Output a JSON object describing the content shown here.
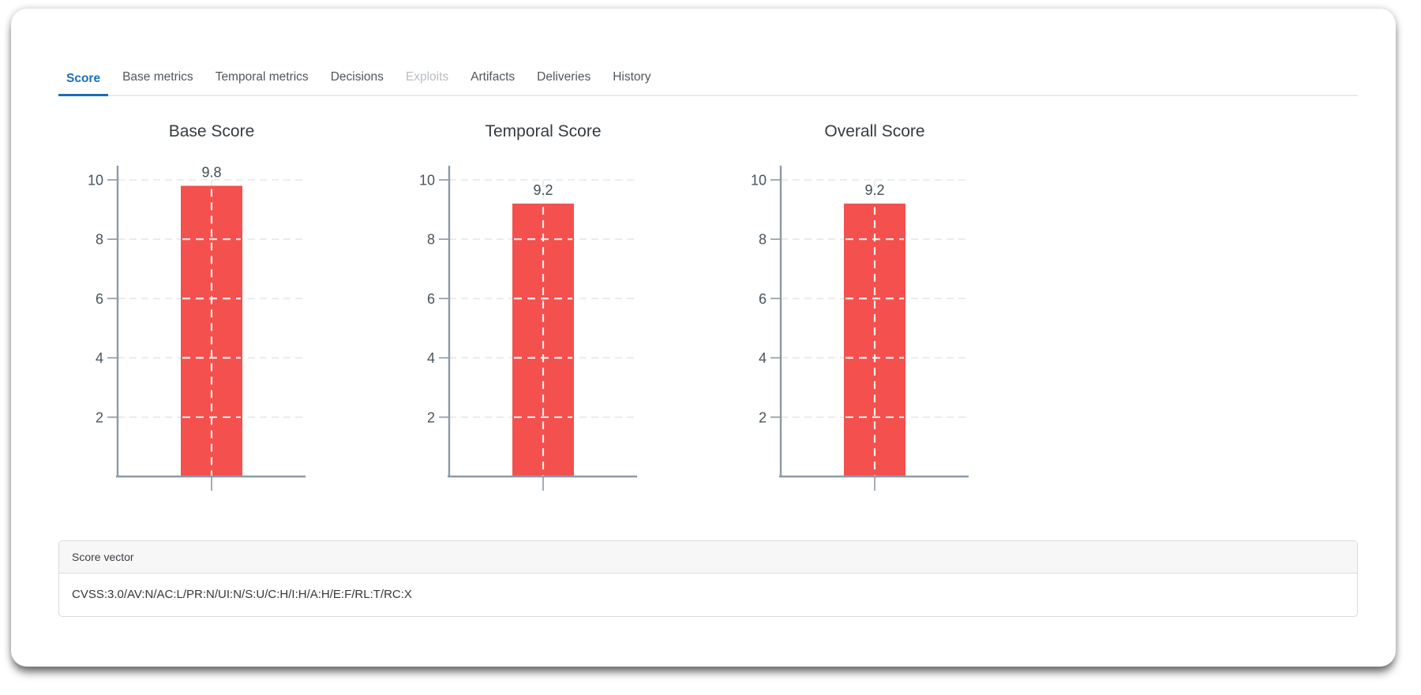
{
  "tabs": [
    {
      "label": "Score",
      "state": "active"
    },
    {
      "label": "Base metrics",
      "state": "normal"
    },
    {
      "label": "Temporal metrics",
      "state": "normal"
    },
    {
      "label": "Decisions",
      "state": "normal"
    },
    {
      "label": "Exploits",
      "state": "disabled"
    },
    {
      "label": "Artifacts",
      "state": "normal"
    },
    {
      "label": "Deliveries",
      "state": "normal"
    },
    {
      "label": "History",
      "state": "normal"
    }
  ],
  "chart_data": [
    {
      "type": "bar",
      "title": "Base Score",
      "categories": [
        ""
      ],
      "values": [
        9.8
      ],
      "value_labels": [
        "9.8"
      ],
      "ylim": [
        0,
        10
      ],
      "yticks": [
        2,
        4,
        6,
        8,
        10
      ],
      "grid": true,
      "legend": "none"
    },
    {
      "type": "bar",
      "title": "Temporal Score",
      "categories": [
        ""
      ],
      "values": [
        9.2
      ],
      "value_labels": [
        "9.2"
      ],
      "ylim": [
        0,
        10
      ],
      "yticks": [
        2,
        4,
        6,
        8,
        10
      ],
      "grid": true,
      "legend": "none"
    },
    {
      "type": "bar",
      "title": "Overall Score",
      "categories": [
        ""
      ],
      "values": [
        9.2
      ],
      "value_labels": [
        "9.2"
      ],
      "ylim": [
        0,
        10
      ],
      "yticks": [
        2,
        4,
        6,
        8,
        10
      ],
      "grid": true,
      "legend": "none"
    }
  ],
  "score_vector": {
    "header": "Score vector",
    "value": "CVSS:3.0/AV:N/AC:L/PR:N/UI:N/S:U/C:H/I:H/A:H/E:F/RL:T/RC:X"
  },
  "colors": {
    "bar": "#f4504e",
    "axis": "#8b9aa7",
    "gridline": "#e5e7ea",
    "tab_active": "#1a6fb3",
    "tab_disabled": "#b9bdc1",
    "tab_normal": "#50575d"
  }
}
